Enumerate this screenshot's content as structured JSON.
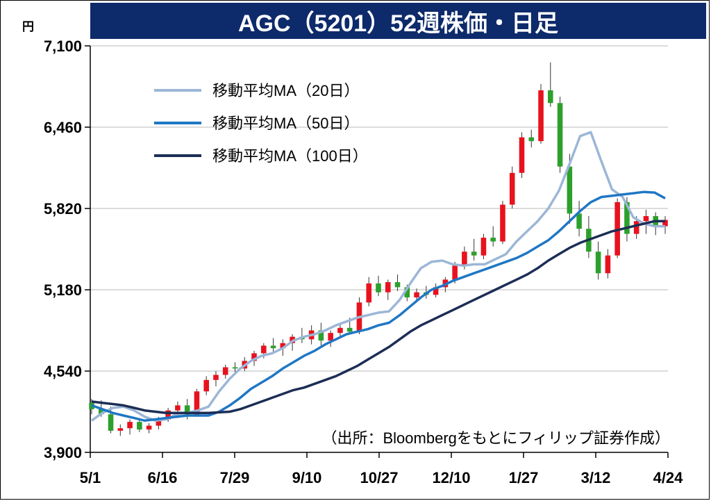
{
  "header": {
    "title": "AGC（5201）52週株価・日足"
  },
  "source_note": "（出所：Bloombergをもとにフィリップ証券作成）",
  "colors": {
    "title_bg": "#0d2a6b",
    "up": "#e8121e",
    "down": "#2ca02c",
    "ma20": "#9cb6d6",
    "ma50": "#1f77c4",
    "ma100": "#1c2e55",
    "grid": "#d0d0d0"
  },
  "chart_data": {
    "type": "candlestick",
    "title": "AGC（5201）52週株価・日足",
    "ylabel": "円",
    "ylim": [
      3900,
      7100
    ],
    "yticks": [
      3900,
      4540,
      5180,
      5820,
      6460,
      7100
    ],
    "ytick_labels": [
      "3,900",
      "4,540",
      "5,180",
      "5,820",
      "6,460",
      "7,100"
    ],
    "xtick_labels": [
      "5/1",
      "6/16",
      "7/29",
      "9/10",
      "10/27",
      "12/10",
      "1/27",
      "3/12",
      "4/24"
    ],
    "grid": true,
    "legend_position": "top-left",
    "series": [
      {
        "name": "移動平均MA（20日）",
        "color": "#9cb6d6",
        "values": [
          4150,
          4210,
          4250,
          4260,
          4230,
          4180,
          4150,
          4160,
          4200,
          4210,
          4230,
          4260,
          4380,
          4480,
          4560,
          4620,
          4660,
          4680,
          4720,
          4780,
          4810,
          4830,
          4860,
          4900,
          4930,
          4960,
          4980,
          5000,
          5010,
          5100,
          5230,
          5350,
          5400,
          5410,
          5380,
          5370,
          5380,
          5380,
          5420,
          5460,
          5560,
          5640,
          5720,
          5820,
          5960,
          6170,
          6390,
          6420,
          6190,
          5970,
          5910,
          5750,
          5700,
          5680,
          5680
        ]
      },
      {
        "name": "移動平均MA（50日）",
        "color": "#1f77c4",
        "values": [
          4270,
          4240,
          4210,
          4190,
          4170,
          4150,
          4160,
          4170,
          4180,
          4190,
          4190,
          4190,
          4220,
          4270,
          4330,
          4400,
          4450,
          4500,
          4560,
          4610,
          4660,
          4700,
          4750,
          4790,
          4830,
          4850,
          4870,
          4900,
          4920,
          4980,
          5050,
          5120,
          5180,
          5210,
          5250,
          5280,
          5310,
          5340,
          5370,
          5400,
          5430,
          5470,
          5520,
          5570,
          5640,
          5720,
          5800,
          5870,
          5910,
          5920,
          5930,
          5940,
          5950,
          5945,
          5900
        ]
      },
      {
        "name": "移動平均MA（100日）",
        "color": "#1c2e55",
        "values": [
          4300,
          4290,
          4280,
          4270,
          4250,
          4230,
          4220,
          4210,
          4210,
          4210,
          4210,
          4210,
          4215,
          4220,
          4240,
          4270,
          4300,
          4330,
          4360,
          4390,
          4410,
          4440,
          4470,
          4500,
          4540,
          4580,
          4630,
          4680,
          4730,
          4790,
          4850,
          4900,
          4940,
          4980,
          5020,
          5060,
          5100,
          5140,
          5180,
          5220,
          5260,
          5300,
          5350,
          5410,
          5460,
          5510,
          5550,
          5580,
          5610,
          5640,
          5660,
          5680,
          5700,
          5720,
          5720
        ]
      }
    ],
    "candles": [
      {
        "o": 4290,
        "h": 4320,
        "l": 4200,
        "c": 4240
      },
      {
        "o": 4240,
        "h": 4310,
        "l": 4180,
        "c": 4200
      },
      {
        "o": 4200,
        "h": 4260,
        "l": 4050,
        "c": 4070
      },
      {
        "o": 4070,
        "h": 4120,
        "l": 4030,
        "c": 4090
      },
      {
        "o": 4090,
        "h": 4160,
        "l": 4040,
        "c": 4140
      },
      {
        "o": 4140,
        "h": 4170,
        "l": 4060,
        "c": 4080
      },
      {
        "o": 4080,
        "h": 4130,
        "l": 4050,
        "c": 4110
      },
      {
        "o": 4110,
        "h": 4180,
        "l": 4080,
        "c": 4160
      },
      {
        "o": 4160,
        "h": 4250,
        "l": 4140,
        "c": 4230
      },
      {
        "o": 4230,
        "h": 4300,
        "l": 4170,
        "c": 4270
      },
      {
        "o": 4270,
        "h": 4320,
        "l": 4160,
        "c": 4190
      },
      {
        "o": 4190,
        "h": 4400,
        "l": 4180,
        "c": 4380
      },
      {
        "o": 4380,
        "h": 4500,
        "l": 4350,
        "c": 4470
      },
      {
        "o": 4470,
        "h": 4540,
        "l": 4420,
        "c": 4510
      },
      {
        "o": 4510,
        "h": 4590,
        "l": 4480,
        "c": 4570
      },
      {
        "o": 4570,
        "h": 4610,
        "l": 4520,
        "c": 4560
      },
      {
        "o": 4560,
        "h": 4650,
        "l": 4540,
        "c": 4620
      },
      {
        "o": 4620,
        "h": 4700,
        "l": 4580,
        "c": 4680
      },
      {
        "o": 4680,
        "h": 4760,
        "l": 4640,
        "c": 4740
      },
      {
        "o": 4740,
        "h": 4800,
        "l": 4690,
        "c": 4720
      },
      {
        "o": 4720,
        "h": 4790,
        "l": 4660,
        "c": 4760
      },
      {
        "o": 4760,
        "h": 4830,
        "l": 4700,
        "c": 4810
      },
      {
        "o": 4810,
        "h": 4880,
        "l": 4760,
        "c": 4790
      },
      {
        "o": 4790,
        "h": 4900,
        "l": 4750,
        "c": 4860
      },
      {
        "o": 4860,
        "h": 4920,
        "l": 4740,
        "c": 4780
      },
      {
        "o": 4780,
        "h": 4860,
        "l": 4730,
        "c": 4840
      },
      {
        "o": 4840,
        "h": 4920,
        "l": 4800,
        "c": 4880
      },
      {
        "o": 4880,
        "h": 4960,
        "l": 4830,
        "c": 4850
      },
      {
        "o": 4850,
        "h": 5120,
        "l": 4830,
        "c": 5080
      },
      {
        "o": 5080,
        "h": 5280,
        "l": 5050,
        "c": 5230
      },
      {
        "o": 5230,
        "h": 5290,
        "l": 5130,
        "c": 5160
      },
      {
        "o": 5160,
        "h": 5260,
        "l": 5100,
        "c": 5240
      },
      {
        "o": 5240,
        "h": 5300,
        "l": 5170,
        "c": 5200
      },
      {
        "o": 5200,
        "h": 5220,
        "l": 5090,
        "c": 5120
      },
      {
        "o": 5120,
        "h": 5190,
        "l": 5080,
        "c": 5160
      },
      {
        "o": 5160,
        "h": 5210,
        "l": 5110,
        "c": 5140
      },
      {
        "o": 5140,
        "h": 5230,
        "l": 5120,
        "c": 5200
      },
      {
        "o": 5200,
        "h": 5280,
        "l": 5160,
        "c": 5260
      },
      {
        "o": 5260,
        "h": 5400,
        "l": 5230,
        "c": 5370
      },
      {
        "o": 5370,
        "h": 5520,
        "l": 5340,
        "c": 5480
      },
      {
        "o": 5480,
        "h": 5580,
        "l": 5410,
        "c": 5450
      },
      {
        "o": 5450,
        "h": 5620,
        "l": 5420,
        "c": 5590
      },
      {
        "o": 5590,
        "h": 5680,
        "l": 5520,
        "c": 5560
      },
      {
        "o": 5560,
        "h": 5880,
        "l": 5540,
        "c": 5850
      },
      {
        "o": 5850,
        "h": 6150,
        "l": 5820,
        "c": 6100
      },
      {
        "o": 6100,
        "h": 6420,
        "l": 6060,
        "c": 6380
      },
      {
        "o": 6380,
        "h": 6440,
        "l": 6300,
        "c": 6350
      },
      {
        "o": 6350,
        "h": 6800,
        "l": 6330,
        "c": 6750
      },
      {
        "o": 6750,
        "h": 6970,
        "l": 6620,
        "c": 6650
      },
      {
        "o": 6650,
        "h": 6700,
        "l": 6100,
        "c": 6150
      },
      {
        "o": 6150,
        "h": 6250,
        "l": 5700,
        "c": 5780
      },
      {
        "o": 5780,
        "h": 5880,
        "l": 5600,
        "c": 5660
      },
      {
        "o": 5660,
        "h": 5760,
        "l": 5430,
        "c": 5480
      },
      {
        "o": 5480,
        "h": 5560,
        "l": 5260,
        "c": 5310
      },
      {
        "o": 5310,
        "h": 5500,
        "l": 5270,
        "c": 5450
      },
      {
        "o": 5450,
        "h": 5900,
        "l": 5430,
        "c": 5870
      },
      {
        "o": 5870,
        "h": 5910,
        "l": 5560,
        "c": 5620
      },
      {
        "o": 5620,
        "h": 5760,
        "l": 5580,
        "c": 5720
      },
      {
        "o": 5720,
        "h": 5810,
        "l": 5620,
        "c": 5760
      },
      {
        "o": 5760,
        "h": 5790,
        "l": 5610,
        "c": 5680
      },
      {
        "o": 5680,
        "h": 5760,
        "l": 5620,
        "c": 5730
      }
    ]
  }
}
